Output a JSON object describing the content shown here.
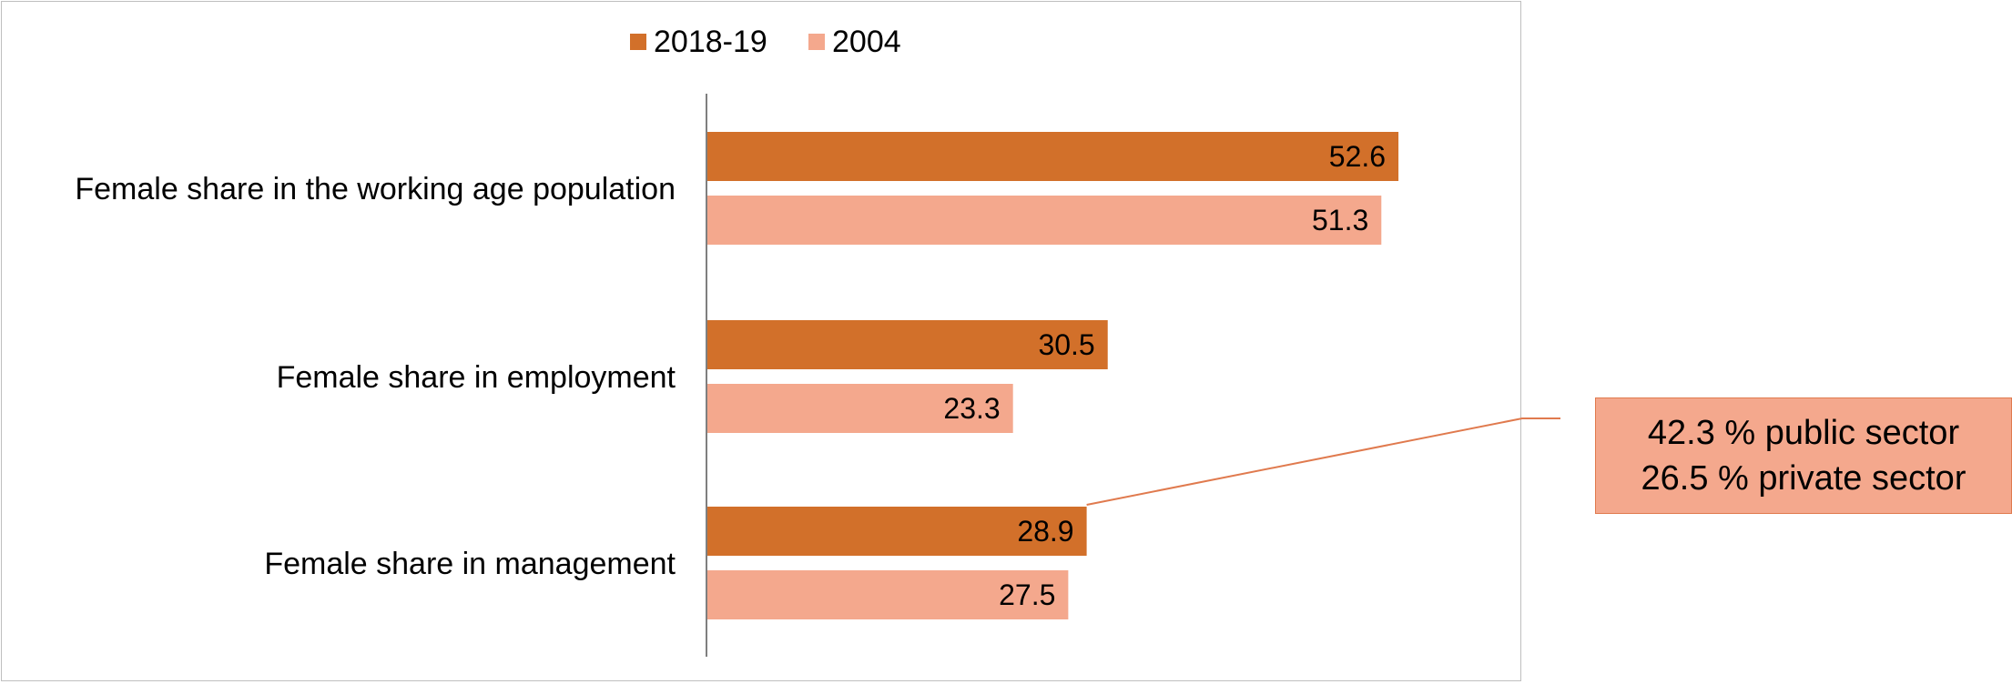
{
  "chart_data": {
    "type": "bar",
    "orientation": "horizontal",
    "categories": [
      "Female share in the working age population",
      "Female share in employment",
      "Female share in management"
    ],
    "series": [
      {
        "name": "2018-19",
        "values": [
          52.6,
          30.5,
          28.9
        ],
        "color": "#d2702a"
      },
      {
        "name": "2004",
        "values": [
          51.3,
          23.3,
          27.5
        ],
        "color": "#f4a88d"
      }
    ],
    "xlim": [
      0,
      60
    ],
    "grid": false,
    "legend_position": "top",
    "data_labels": true,
    "annotation": {
      "lines": [
        "42.3 % public sector",
        "26.5 % private sector"
      ],
      "target_category": "Female share in management",
      "target_series": "2018-19",
      "color": "#f4a88d",
      "border_color": "#e07a4e"
    }
  }
}
